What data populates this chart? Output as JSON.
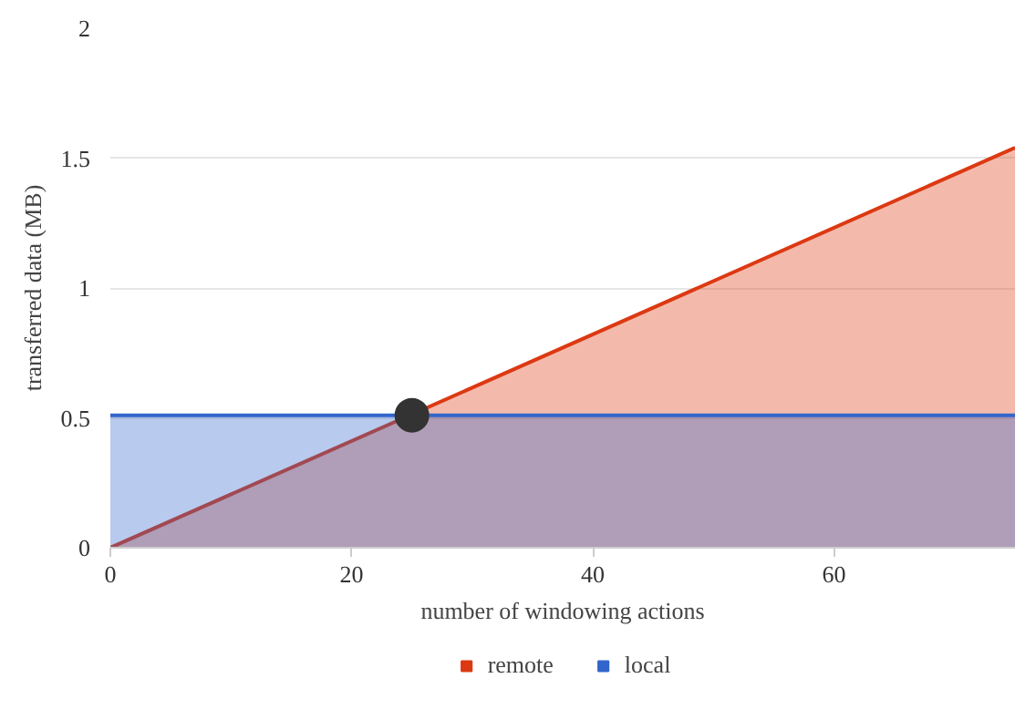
{
  "chart_data": {
    "type": "area",
    "xlabel": "number of windowing actions",
    "ylabel": "transferred data (MB)",
    "x": [
      0,
      75
    ],
    "xlim": [
      0,
      75
    ],
    "ylim": [
      0,
      2
    ],
    "xticks": [
      0,
      20,
      40,
      60
    ],
    "yticks": [
      0,
      0.5,
      1,
      1.5,
      2
    ],
    "grid": "y",
    "legend": "bottom",
    "series": [
      {
        "name": "remote",
        "color": "#dc3912",
        "values": [
          0,
          1.54
        ]
      },
      {
        "name": "local",
        "color": "#3366cc",
        "values": [
          0.51,
          0.51
        ]
      },
      {
        "type": "scatter",
        "color": "#333333",
        "x": [
          25
        ],
        "values": [
          0.51
        ],
        "marker": "circle"
      }
    ]
  }
}
